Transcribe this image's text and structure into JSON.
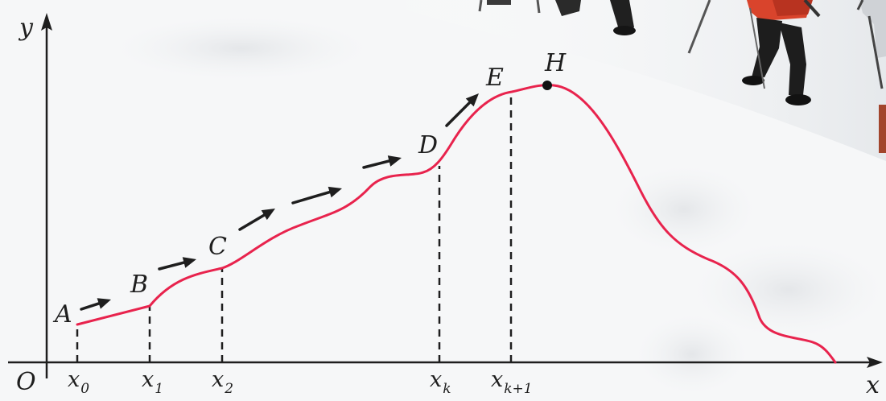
{
  "chart_data": {
    "type": "line",
    "origin_label": "O",
    "axis_labels": {
      "x": "x",
      "y": "y"
    },
    "ticks": [
      {
        "base": "x",
        "sub": "0"
      },
      {
        "base": "x",
        "sub": "1"
      },
      {
        "base": "x",
        "sub": "2"
      },
      {
        "base": "x",
        "sub": "k"
      },
      {
        "base": "x",
        "sub": "k+1"
      }
    ],
    "points": [
      {
        "label": "A"
      },
      {
        "label": "B"
      },
      {
        "label": "C"
      },
      {
        "label": "D"
      },
      {
        "label": "E"
      },
      {
        "label": "H"
      }
    ],
    "colors": {
      "curve": "#e8234d",
      "axes": "#1e1e1e",
      "arrows": "#1e1e1e"
    }
  }
}
